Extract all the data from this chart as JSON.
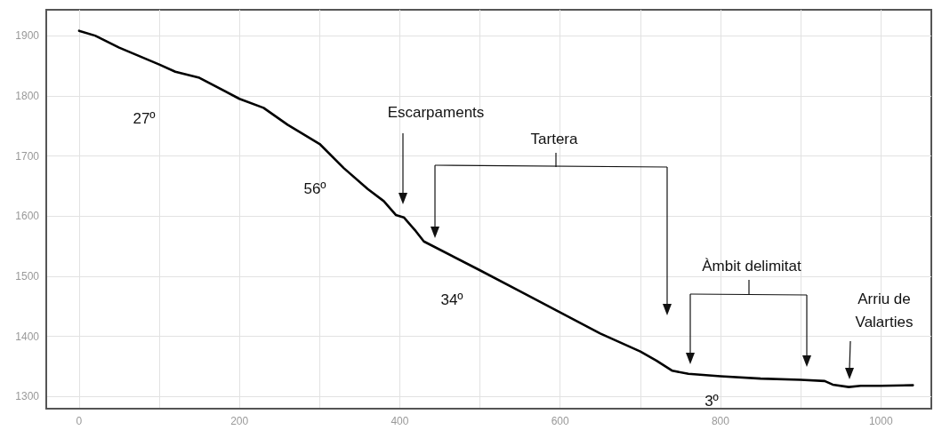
{
  "chart_data": {
    "type": "line",
    "x": [
      0,
      20,
      50,
      100,
      120,
      150,
      200,
      230,
      260,
      300,
      330,
      360,
      380,
      395,
      405,
      420,
      430,
      500,
      550,
      600,
      650,
      700,
      720,
      740,
      760,
      800,
      850,
      900,
      930,
      940,
      960,
      975,
      1000,
      1040
    ],
    "series": [
      {
        "color": "#000000",
        "values": [
          1908,
          1900,
          1880,
          1852,
          1840,
          1830,
          1795,
          1780,
          1752,
          1720,
          1680,
          1645,
          1625,
          1602,
          1598,
          1575,
          1558,
          1510,
          1475,
          1440,
          1405,
          1375,
          1360,
          1343,
          1338,
          1334,
          1330,
          1328,
          1326,
          1320,
          1316,
          1318,
          1318,
          1319
        ]
      }
    ],
    "xlim": [
      -41,
      1063
    ],
    "xticks": [
      0,
      {
        "value": 100,
        "label": null
      },
      200,
      {
        "value": 300,
        "label": null
      },
      400,
      {
        "value": 500,
        "label": null
      },
      600,
      {
        "value": 700,
        "label": null
      },
      800,
      {
        "value": 900,
        "label": null
      },
      1000
    ],
    "ylim": [
      1280,
      1943
    ],
    "yticks": [
      1300,
      1400,
      1500,
      1600,
      1700,
      1800,
      1900
    ],
    "grid": true,
    "marker": "none",
    "line_style": "solid",
    "annotations": [
      "27º",
      "56º",
      "Escarpaments",
      "Tartera",
      "34º",
      "Àmbit delimitat",
      "Arriu de\nValarties",
      "3º"
    ]
  }
}
